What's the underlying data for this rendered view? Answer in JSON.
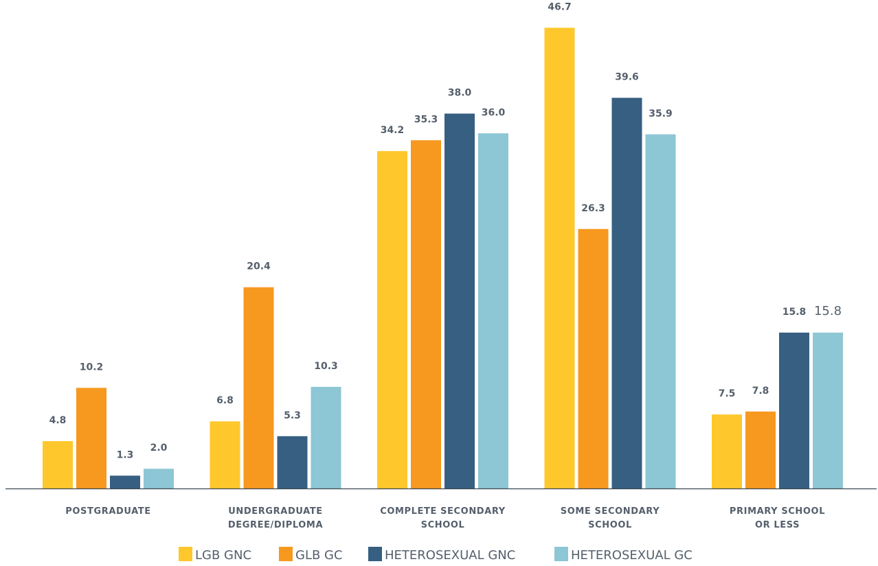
{
  "chart_data": {
    "type": "bar",
    "categories": [
      [
        "POSTGRADUATE"
      ],
      [
        "UNDERGRADUATE",
        "DEGREE/DIPLOMA"
      ],
      [
        "COMPLETE SECONDARY",
        "SCHOOL"
      ],
      [
        "SOME SECONDARY",
        "SCHOOL"
      ],
      [
        "PRIMARY SCHOOL",
        "OR LESS"
      ]
    ],
    "series": [
      {
        "name": "LGB GNC",
        "color": "#fec72c",
        "values": [
          4.8,
          6.8,
          34.2,
          46.7,
          7.5
        ],
        "labels": [
          "4.8",
          "6.8",
          "34.2",
          "46.7",
          "7.5"
        ]
      },
      {
        "name": "GLB GC",
        "color": "#f7981f",
        "values": [
          10.2,
          20.4,
          35.3,
          26.3,
          7.8
        ],
        "labels": [
          "10.2",
          "20.4",
          "35.3",
          "26.3",
          "7.8"
        ]
      },
      {
        "name": "HETEROSEXUAL GNC",
        "color": "#365f82",
        "values": [
          1.3,
          5.3,
          38.0,
          39.6,
          15.8
        ],
        "labels": [
          "1.3",
          "5.3",
          "38.0",
          "39.6",
          "15.8"
        ]
      },
      {
        "name": "HETEROSEXUAL GC",
        "color": "#8dc6d4",
        "values": [
          2.0,
          10.3,
          36.0,
          35.9,
          15.8
        ],
        "labels": [
          "2.0",
          "10.3",
          "36.0",
          "35.9",
          "15.8"
        ]
      }
    ],
    "title": "",
    "xlabel": "",
    "ylabel": "",
    "ylim": [
      0,
      50
    ],
    "grid": false,
    "legend": "bottom"
  }
}
